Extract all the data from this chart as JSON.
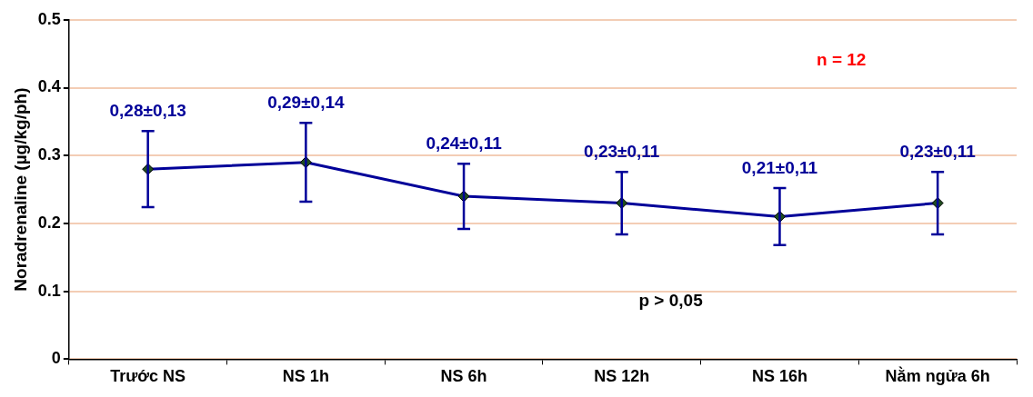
{
  "chart_data": {
    "type": "line",
    "ylabel": "Noradrenaline (µg/kg/ph)",
    "categories": [
      "Trước NS",
      "NS 1h",
      "NS 6h",
      "NS 12h",
      "NS 16h",
      "Nằm ngửa 6h"
    ],
    "series": [
      {
        "color": "#000099",
        "values": [
          0.28,
          0.29,
          0.24,
          0.23,
          0.21,
          0.23
        ],
        "errors": [
          0.056,
          0.058,
          0.048,
          0.046,
          0.042,
          0.046
        ],
        "value_labels": [
          "0,28±0,13",
          "0,29±0,14",
          "0,24±0,11",
          "0,23±0,11",
          "0,21±0,11",
          "0,23±0,11"
        ]
      }
    ],
    "ylim": [
      0,
      0.5
    ],
    "yticks": [
      0,
      0.1,
      0.2,
      0.3,
      0.4,
      0.5
    ],
    "grid": "y",
    "legend": false,
    "marker": "diamond",
    "line_style": "solid",
    "annotations": [
      "n = 12",
      "p > 0,05"
    ]
  }
}
